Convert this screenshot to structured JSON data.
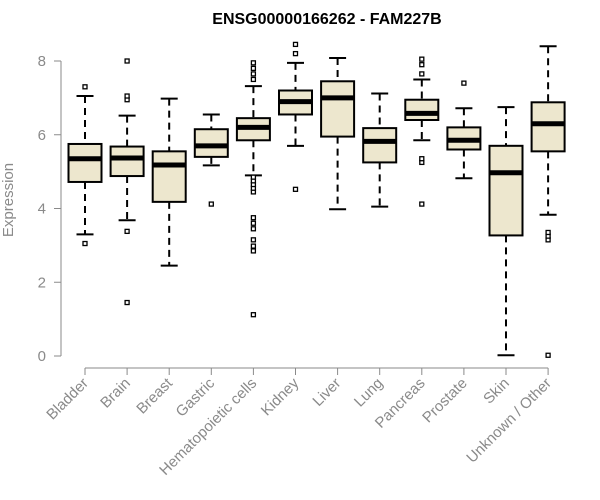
{
  "chart_data": {
    "type": "boxplot",
    "title": "ENSG00000166262 - FAM227B",
    "xlabel": "",
    "ylabel": "Expression",
    "ylim": [
      0,
      8.4
    ],
    "yticks": [
      0,
      2,
      4,
      6,
      8
    ],
    "colors": {
      "box_fill": "#ede7ce",
      "line": "#000000",
      "axis": "#8a8a8a"
    },
    "categories": [
      "Bladder",
      "Brain",
      "Breast",
      "Gastric",
      "Hematopoietic cells",
      "Kidney",
      "Liver",
      "Lung",
      "Pancreas",
      "Prostate",
      "Skin",
      "Unknown / Other"
    ],
    "boxes": [
      {
        "name": "Bladder",
        "whisker_low": 3.3,
        "q1": 4.72,
        "median": 5.35,
        "q3": 5.75,
        "whisker_high": 7.05,
        "outliers": [
          3.05,
          7.3
        ]
      },
      {
        "name": "Brain",
        "whisker_low": 3.68,
        "q1": 4.88,
        "median": 5.37,
        "q3": 5.68,
        "whisker_high": 6.52,
        "outliers": [
          1.45,
          3.38,
          6.95,
          7.05,
          8.0
        ]
      },
      {
        "name": "Breast",
        "whisker_low": 2.45,
        "q1": 4.18,
        "median": 5.18,
        "q3": 5.55,
        "whisker_high": 6.98,
        "outliers": []
      },
      {
        "name": "Gastric",
        "whisker_low": 5.17,
        "q1": 5.4,
        "median": 5.7,
        "q3": 6.15,
        "whisker_high": 6.55,
        "outliers": [
          4.12
        ]
      },
      {
        "name": "Hematopoietic cells",
        "whisker_low": 4.9,
        "q1": 5.85,
        "median": 6.2,
        "q3": 6.45,
        "whisker_high": 7.32,
        "outliers": [
          1.12,
          2.85,
          2.98,
          3.15,
          3.45,
          3.6,
          3.75,
          4.45,
          4.55,
          4.65,
          4.75,
          4.85,
          7.5,
          7.65,
          7.8,
          7.95
        ]
      },
      {
        "name": "Kidney",
        "whisker_low": 5.7,
        "q1": 6.55,
        "median": 6.9,
        "q3": 7.2,
        "whisker_high": 7.95,
        "outliers": [
          4.52,
          8.2,
          8.45
        ]
      },
      {
        "name": "Liver",
        "whisker_low": 3.98,
        "q1": 5.95,
        "median": 7.0,
        "q3": 7.45,
        "whisker_high": 8.08,
        "outliers": []
      },
      {
        "name": "Lung",
        "whisker_low": 4.05,
        "q1": 5.25,
        "median": 5.82,
        "q3": 6.18,
        "whisker_high": 7.12,
        "outliers": []
      },
      {
        "name": "Pancreas",
        "whisker_low": 5.85,
        "q1": 6.4,
        "median": 6.58,
        "q3": 6.95,
        "whisker_high": 7.5,
        "outliers": [
          4.12,
          5.25,
          5.35,
          7.65,
          7.9,
          8.05
        ]
      },
      {
        "name": "Prostate",
        "whisker_low": 4.82,
        "q1": 5.6,
        "median": 5.85,
        "q3": 6.2,
        "whisker_high": 6.72,
        "outliers": [
          7.4
        ]
      },
      {
        "name": "Skin",
        "whisker_low": 0.02,
        "q1": 3.27,
        "median": 4.97,
        "q3": 5.7,
        "whisker_high": 6.75,
        "outliers": []
      },
      {
        "name": "Unknown / Other",
        "whisker_low": 3.83,
        "q1": 5.55,
        "median": 6.3,
        "q3": 6.88,
        "whisker_high": 8.4,
        "outliers": [
          0.02,
          3.15,
          3.25,
          3.35
        ]
      }
    ]
  }
}
